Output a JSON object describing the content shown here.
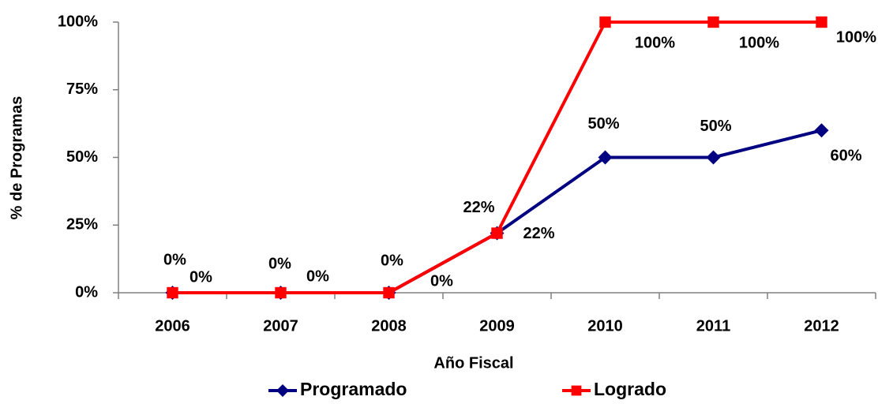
{
  "chart_data": {
    "type": "line",
    "categories": [
      "2006",
      "2007",
      "2008",
      "2009",
      "2010",
      "2011",
      "2012"
    ],
    "series": [
      {
        "name": "Programado",
        "color": "#000080",
        "marker": "diamond",
        "values": [
          0,
          0,
          0,
          22,
          50,
          50,
          60
        ],
        "value_labels": [
          "0%",
          "0%",
          "0%",
          "22%",
          "50%",
          "50%",
          "60%"
        ]
      },
      {
        "name": "Logrado",
        "color": "#ff0000",
        "marker": "square",
        "values": [
          0,
          0,
          0,
          22,
          100,
          100,
          100
        ],
        "value_labels": [
          "0%",
          "0%",
          "0%",
          "22%",
          "100%",
          "100%",
          "100%"
        ]
      }
    ],
    "ylim": [
      0,
      100
    ],
    "yticks": [
      {
        "value": 0,
        "label": "0%"
      },
      {
        "value": 25,
        "label": "25%"
      },
      {
        "value": 50,
        "label": "50%"
      },
      {
        "value": 75,
        "label": "75%"
      },
      {
        "value": 100,
        "label": "100%"
      }
    ],
    "xlabel": "Año Fiscal",
    "ylabel": "% de Programas",
    "legend": "bottom",
    "grid": false
  }
}
